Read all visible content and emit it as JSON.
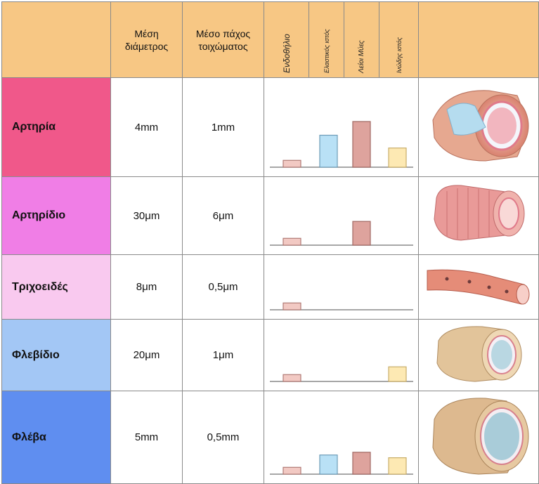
{
  "headers": {
    "diameter": "Μέση διάμετρος",
    "wall": "Μέσο πάχος τοιχώματος",
    "tissues": [
      "Ενδοθήλιο",
      "Ελαστικός ιστός",
      "Λείοι Μύες",
      "Ινώδης ιστός"
    ]
  },
  "colors": {
    "header": "#f7c784",
    "endothelium": "#f2c9c3",
    "elastic": "#b9e1f6",
    "muscle": "#dea39d",
    "fibrous": "#fde9b3"
  },
  "rows": [
    {
      "name": "Αρτηρία",
      "diameter": "4mm",
      "wall": "1mm",
      "color": "#f0588a",
      "tissue_levels": [
        0.15,
        0.7,
        1.0,
        0.42
      ],
      "icon": "artery-illustration"
    },
    {
      "name": "Αρτηρίδιο",
      "diameter": "30μm",
      "wall": "6μm",
      "color": "#f07ee6",
      "tissue_levels": [
        0.15,
        0,
        0.52,
        0
      ],
      "icon": "arteriole-illustration"
    },
    {
      "name": "Τριχοειδές",
      "diameter": "8μm",
      "wall": "0,5μm",
      "color": "#f9c9ef",
      "tissue_levels": [
        0.15,
        0,
        0,
        0
      ],
      "icon": "capillary-illustration"
    },
    {
      "name": "Φλεβίδιο",
      "diameter": "20μm",
      "wall": "1μm",
      "color": "#a3c7f5",
      "tissue_levels": [
        0.15,
        0,
        0,
        0.32
      ],
      "icon": "venule-illustration"
    },
    {
      "name": "Φλέβα",
      "diameter": "5mm",
      "wall": "0,5mm",
      "color": "#5f8ef0",
      "tissue_levels": [
        0.15,
        0.42,
        0.48,
        0.36
      ],
      "icon": "vein-illustration"
    }
  ]
}
